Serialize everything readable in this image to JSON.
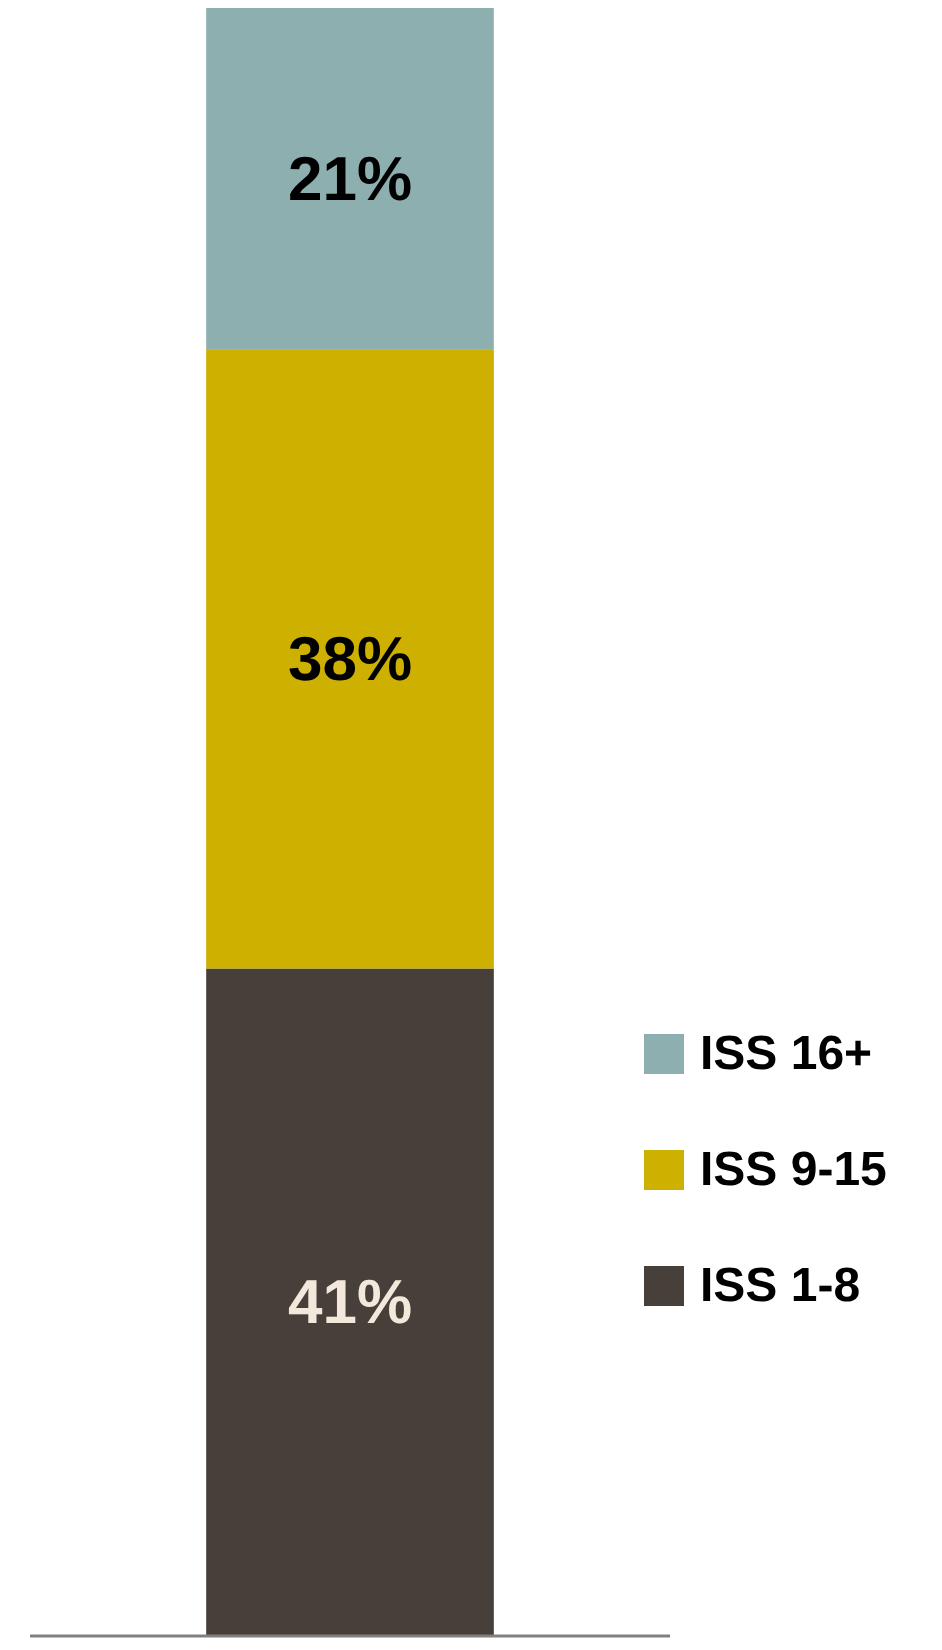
{
  "chart_data": {
    "type": "bar",
    "stacked": true,
    "categories": [
      null
    ],
    "legend": "bottom right",
    "series": [
      {
        "name": "ISS 1-8",
        "color": "#473f39",
        "values": [
          41
        ],
        "value_labels": [
          "41%"
        ]
      },
      {
        "name": "ISS 9-15",
        "color": "#cdb000",
        "values": [
          38
        ],
        "value_labels": [
          "38%"
        ]
      },
      {
        "name": "ISS 16+",
        "color": "#8eafaf",
        "values": [
          21
        ],
        "value_labels": [
          "21%"
        ]
      }
    ]
  }
}
